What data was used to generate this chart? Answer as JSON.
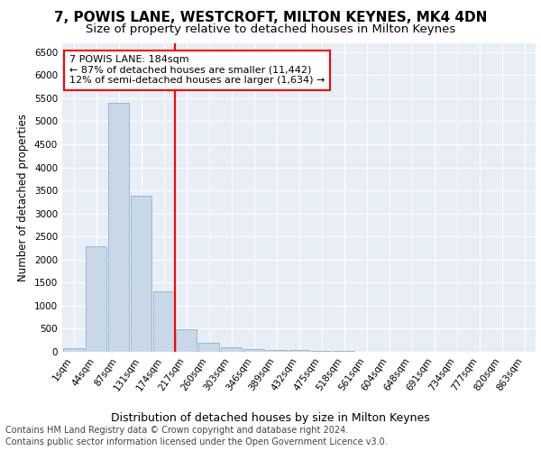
{
  "title": "7, POWIS LANE, WESTCROFT, MILTON KEYNES, MK4 4DN",
  "subtitle": "Size of property relative to detached houses in Milton Keynes",
  "xlabel": "Distribution of detached houses by size in Milton Keynes",
  "ylabel": "Number of detached properties",
  "footer_line1": "Contains HM Land Registry data © Crown copyright and database right 2024.",
  "footer_line2": "Contains public sector information licensed under the Open Government Licence v3.0.",
  "annotation_title": "7 POWIS LANE: 184sqm",
  "annotation_line1": "← 87% of detached houses are smaller (11,442)",
  "annotation_line2": "12% of semi-detached houses are larger (1,634) →",
  "vline_position": 4.5,
  "bar_color": "#c8d8e8",
  "bar_edge_color": "#7aaac8",
  "vline_color": "red",
  "categories": [
    "1sqm",
    "44sqm",
    "87sqm",
    "131sqm",
    "174sqm",
    "217sqm",
    "260sqm",
    "303sqm",
    "346sqm",
    "389sqm",
    "432sqm",
    "475sqm",
    "518sqm",
    "561sqm",
    "604sqm",
    "648sqm",
    "691sqm",
    "734sqm",
    "777sqm",
    "820sqm",
    "863sqm"
  ],
  "values": [
    75,
    2280,
    5400,
    3380,
    1310,
    480,
    195,
    100,
    65,
    45,
    30,
    20,
    10,
    5,
    3,
    2,
    1,
    1,
    0,
    0,
    0
  ],
  "ylim": [
    0,
    6700
  ],
  "yticks": [
    0,
    500,
    1000,
    1500,
    2000,
    2500,
    3000,
    3500,
    4000,
    4500,
    5000,
    5500,
    6000,
    6500
  ],
  "plot_bg_color": "#e8eef6",
  "grid_color": "white",
  "title_fontsize": 11,
  "subtitle_fontsize": 9.5,
  "ylabel_fontsize": 8.5,
  "xlabel_fontsize": 9,
  "tick_fontsize": 7.5,
  "annotation_fontsize": 8,
  "footer_fontsize": 7
}
